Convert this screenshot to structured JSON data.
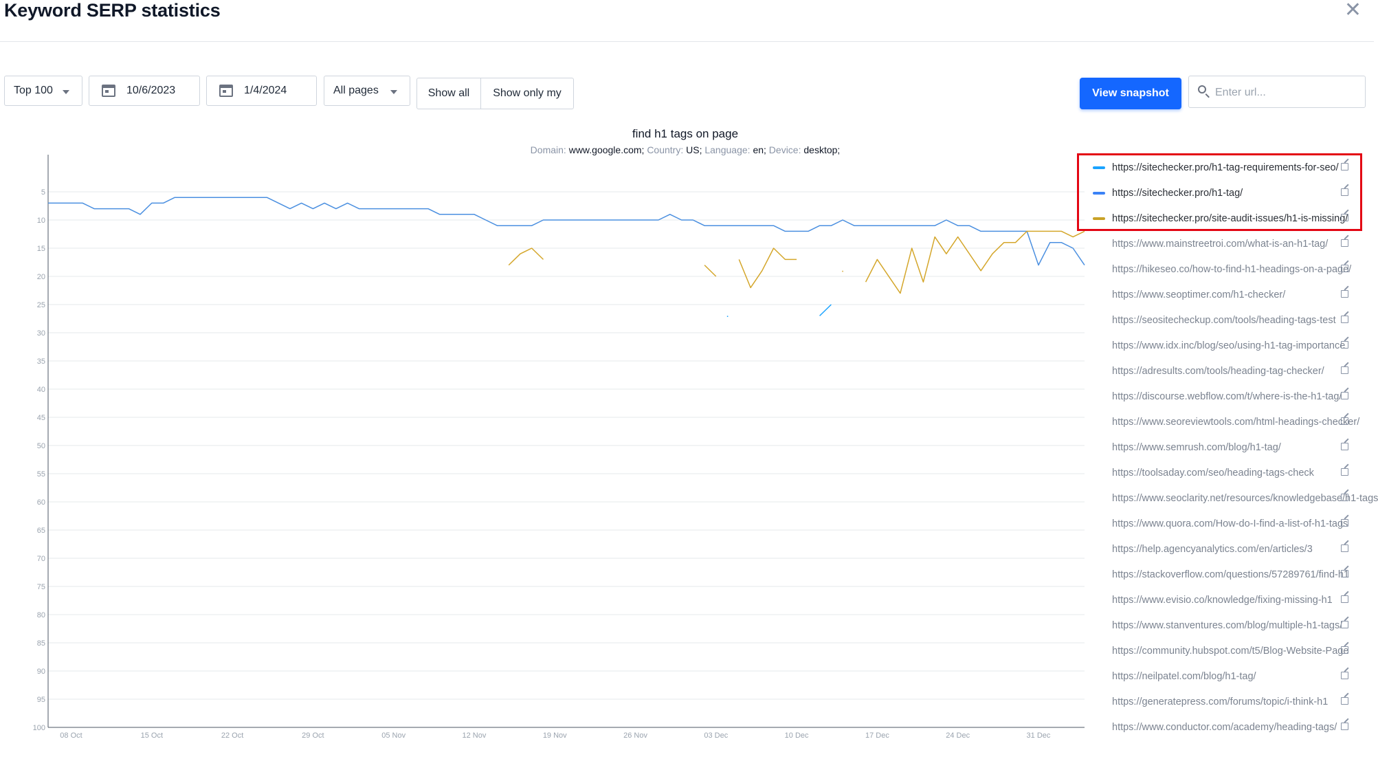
{
  "header": {
    "title": "Keyword SERP statistics",
    "close_glyph": "✕"
  },
  "controls": {
    "top_select": "Top 100",
    "date_from": "10/6/2023",
    "date_to": "1/4/2024",
    "pages_select": "All pages",
    "show_all": "Show all",
    "show_only_my": "Show only my",
    "view_snapshot": "View snapshot",
    "url_placeholder": "Enter url..."
  },
  "chart_info": {
    "title": "find h1 tags on page",
    "domain_label": "Domain:",
    "domain_value": "www.google.com;",
    "country_label": "Country:",
    "country_value": "US;",
    "language_label": "Language:",
    "language_value": "en;",
    "device_label": "Device:",
    "device_value": "desktop;"
  },
  "colors": {
    "accent": "#1467ff",
    "highlight": "#e30613"
  },
  "legend": [
    {
      "url": "https://sitechecker.pro/h1-tag-requirements-for-seo/",
      "color": "#1aa3ff",
      "active": true
    },
    {
      "url": "https://sitechecker.pro/h1-tag/",
      "color": "#3b82f6",
      "active": true
    },
    {
      "url": "https://sitechecker.pro/site-audit-issues/h1-is-missing/",
      "color": "#c9a227",
      "active": true
    },
    {
      "url": "https://www.mainstreetroi.com/what-is-an-h1-tag/",
      "color": "#cccccc",
      "active": false
    },
    {
      "url": "https://hikeseo.co/how-to-find-h1-headings-on-a-page/",
      "color": "#cccccc",
      "active": false
    },
    {
      "url": "https://www.seoptimer.com/h1-checker/",
      "color": "#cccccc",
      "active": false
    },
    {
      "url": "https://seositecheckup.com/tools/heading-tags-test",
      "color": "#cccccc",
      "active": false
    },
    {
      "url": "https://www.idx.inc/blog/seo/using-h1-tag-importance",
      "color": "#cccccc",
      "active": false
    },
    {
      "url": "https://adresults.com/tools/heading-tag-checker/",
      "color": "#cccccc",
      "active": false
    },
    {
      "url": "https://discourse.webflow.com/t/where-is-the-h1-tag/",
      "color": "#cccccc",
      "active": false
    },
    {
      "url": "https://www.seoreviewtools.com/html-headings-checker/",
      "color": "#cccccc",
      "active": false
    },
    {
      "url": "https://www.semrush.com/blog/h1-tag/",
      "color": "#cccccc",
      "active": false
    },
    {
      "url": "https://toolsaday.com/seo/heading-tags-check",
      "color": "#cccccc",
      "active": false
    },
    {
      "url": "https://www.seoclarity.net/resources/knowledgebase/h1-tags",
      "color": "#cccccc",
      "active": false
    },
    {
      "url": "https://www.quora.com/How-do-I-find-a-list-of-h1-tags",
      "color": "#cccccc",
      "active": false
    },
    {
      "url": "https://help.agencyanalytics.com/en/articles/3",
      "color": "#cccccc",
      "active": false
    },
    {
      "url": "https://stackoverflow.com/questions/57289761/find-h1",
      "color": "#cccccc",
      "active": false
    },
    {
      "url": "https://www.evisio.co/knowledge/fixing-missing-h1",
      "color": "#cccccc",
      "active": false
    },
    {
      "url": "https://www.stanventures.com/blog/multiple-h1-tags/",
      "color": "#cccccc",
      "active": false
    },
    {
      "url": "https://community.hubspot.com/t5/Blog-Website-Page",
      "color": "#cccccc",
      "active": false
    },
    {
      "url": "https://neilpatel.com/blog/h1-tag/",
      "color": "#cccccc",
      "active": false
    },
    {
      "url": "https://generatepress.com/forums/topic/i-think-h1",
      "color": "#cccccc",
      "active": false
    },
    {
      "url": "https://www.conductor.com/academy/heading-tags/",
      "color": "#cccccc",
      "active": false
    }
  ],
  "chart_data": {
    "type": "line",
    "title": "find h1 tags on page",
    "ylim": [
      100,
      0
    ],
    "y_inverted": true,
    "y_ticks": [
      5,
      10,
      15,
      20,
      25,
      30,
      35,
      40,
      45,
      50,
      55,
      60,
      65,
      70,
      75,
      80,
      85,
      90,
      95,
      100
    ],
    "x_ticks": [
      "08 Oct",
      "15 Oct",
      "22 Oct",
      "29 Oct",
      "05 Nov",
      "12 Nov",
      "19 Nov",
      "26 Nov",
      "03 Dec",
      "10 Dec",
      "17 Dec",
      "24 Dec",
      "31 Dec"
    ],
    "x_start": "2023-10-06",
    "x_end": "2024-01-04",
    "grid": true,
    "series": [
      {
        "name": "https://sitechecker.pro/h1-tag/",
        "color": "#4a8fe0",
        "points": [
          [
            "2023-10-06",
            7
          ],
          [
            "2023-10-09",
            7
          ],
          [
            "2023-10-10",
            8
          ],
          [
            "2023-10-13",
            8
          ],
          [
            "2023-10-14",
            9
          ],
          [
            "2023-10-15",
            7
          ],
          [
            "2023-10-16",
            7
          ],
          [
            "2023-10-17",
            6
          ],
          [
            "2023-10-25",
            6
          ],
          [
            "2023-10-27",
            8
          ],
          [
            "2023-10-28",
            7
          ],
          [
            "2023-10-29",
            8
          ],
          [
            "2023-10-30",
            7
          ],
          [
            "2023-10-31",
            8
          ],
          [
            "2023-11-01",
            7
          ],
          [
            "2023-11-02",
            8
          ],
          [
            "2023-11-08",
            8
          ],
          [
            "2023-11-09",
            9
          ],
          [
            "2023-11-12",
            9
          ],
          [
            "2023-11-13",
            10
          ],
          [
            "2023-11-14",
            11
          ],
          [
            "2023-11-17",
            11
          ],
          [
            "2023-11-18",
            10
          ],
          [
            "2023-11-28",
            10
          ],
          [
            "2023-11-29",
            9
          ],
          [
            "2023-11-30",
            10
          ],
          [
            "2023-12-01",
            10
          ],
          [
            "2023-12-02",
            11
          ],
          [
            "2023-12-08",
            11
          ],
          [
            "2023-12-09",
            12
          ],
          [
            "2023-12-11",
            12
          ],
          [
            "2023-12-12",
            11
          ],
          [
            "2023-12-13",
            11
          ],
          [
            "2023-12-14",
            10
          ],
          [
            "2023-12-15",
            11
          ],
          [
            "2023-12-22",
            11
          ],
          [
            "2023-12-23",
            10
          ],
          [
            "2023-12-24",
            11
          ],
          [
            "2023-12-25",
            11
          ],
          [
            "2023-12-26",
            12
          ],
          [
            "2023-12-30",
            12
          ],
          [
            "2023-12-31",
            18
          ],
          [
            "2024-01-01",
            14
          ],
          [
            "2024-01-02",
            14
          ],
          [
            "2024-01-03",
            15
          ],
          [
            "2024-01-04",
            18
          ]
        ]
      },
      {
        "name": "https://sitechecker.pro/h1-tag-requirements-for-seo/",
        "color": "#1aa3ff",
        "segments": [
          [
            [
              "2023-12-04",
              27
            ],
            [
              "2023-12-04",
              27.2
            ]
          ],
          [
            [
              "2023-12-12",
              27
            ],
            [
              "2023-12-13",
              25
            ]
          ]
        ]
      },
      {
        "name": "https://sitechecker.pro/site-audit-issues/h1-is-missing/",
        "color": "#d4a62a",
        "segments": [
          [
            [
              "2023-11-15",
              18
            ],
            [
              "2023-11-16",
              16
            ],
            [
              "2023-11-17",
              15
            ],
            [
              "2023-11-18",
              17
            ]
          ],
          [
            [
              "2023-12-02",
              18
            ],
            [
              "2023-12-03",
              20
            ]
          ],
          [
            [
              "2023-12-05",
              17
            ],
            [
              "2023-12-06",
              22
            ],
            [
              "2023-12-07",
              19
            ],
            [
              "2023-12-08",
              15
            ],
            [
              "2023-12-09",
              17
            ],
            [
              "2023-12-10",
              17
            ]
          ],
          [
            [
              "2023-12-14",
              19
            ],
            [
              "2023-12-14",
              19.2
            ]
          ],
          [
            [
              "2023-12-16",
              21
            ],
            [
              "2023-12-17",
              17
            ],
            [
              "2023-12-19",
              23
            ],
            [
              "2023-12-20",
              15
            ],
            [
              "2023-12-21",
              21
            ],
            [
              "2023-12-22",
              13
            ],
            [
              "2023-12-23",
              16
            ],
            [
              "2023-12-24",
              13
            ],
            [
              "2023-12-26",
              19
            ],
            [
              "2023-12-27",
              16
            ],
            [
              "2023-12-28",
              14
            ],
            [
              "2023-12-29",
              14
            ],
            [
              "2023-12-30",
              12
            ],
            [
              "2024-01-01",
              12
            ],
            [
              "2024-01-02",
              12
            ],
            [
              "2024-01-03",
              13
            ],
            [
              "2024-01-04",
              12
            ]
          ]
        ]
      }
    ]
  }
}
